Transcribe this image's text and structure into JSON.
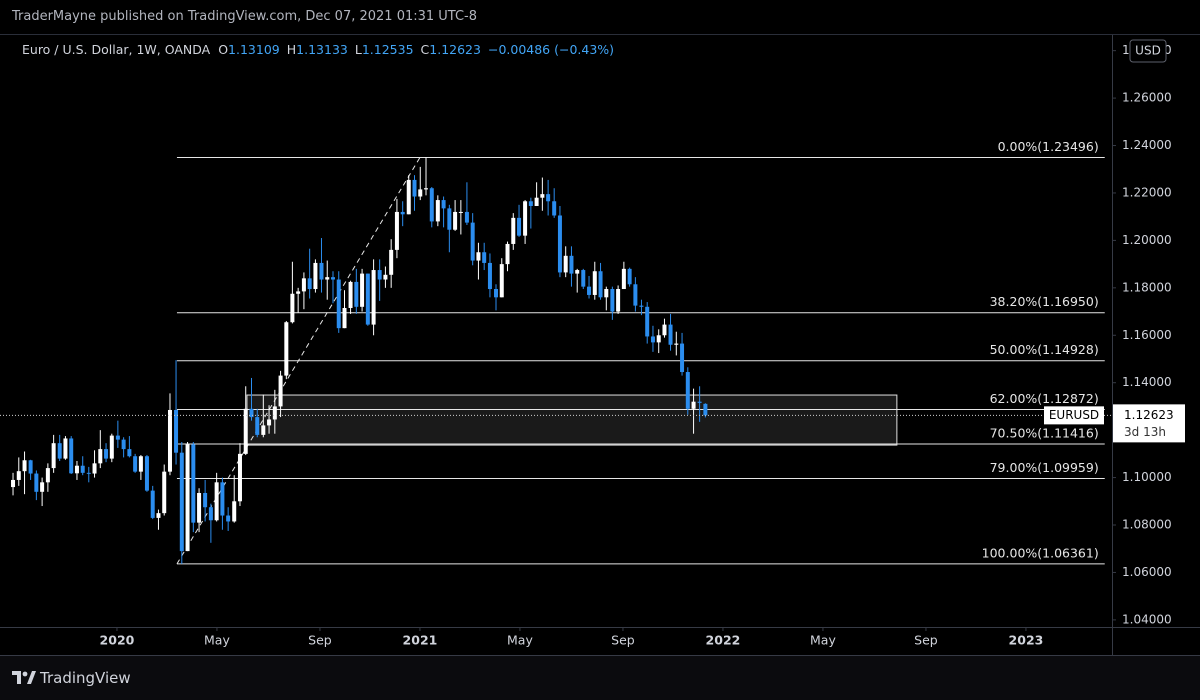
{
  "header": {
    "byline": "TraderMayne published on TradingView.com, Dec 07, 2021 01:31 UTC-8",
    "brand": "TradingView"
  },
  "chart_data": {
    "type": "candlestick",
    "symbol": "Euro / U.S. Dollar, 1W, OANDA",
    "legend_keys": [
      "O",
      "H",
      "L",
      "C"
    ],
    "change": "−0.00486 (−0.43%)",
    "currency": "USD",
    "ticker": "EURUSD",
    "countdown": "3d 13h",
    "x": [
      2019.657,
      2019.676,
      2019.695,
      2019.715,
      2019.734,
      2019.753,
      2019.772,
      2019.791,
      2019.811,
      2019.83,
      2019.849,
      2019.868,
      2019.887,
      2019.907,
      2019.926,
      2019.945,
      2019.964,
      2019.983,
      2020.003,
      2020.022,
      2020.041,
      2020.06,
      2020.079,
      2020.099,
      2020.118,
      2020.137,
      2020.156,
      2020.175,
      2020.195,
      2020.214,
      2020.233,
      2020.252,
      2020.271,
      2020.291,
      2020.31,
      2020.329,
      2020.348,
      2020.367,
      2020.387,
      2020.406,
      2020.425,
      2020.444,
      2020.463,
      2020.483,
      2020.502,
      2020.521,
      2020.54,
      2020.559,
      2020.579,
      2020.598,
      2020.617,
      2020.636,
      2020.655,
      2020.675,
      2020.694,
      2020.713,
      2020.732,
      2020.751,
      2020.771,
      2020.79,
      2020.809,
      2020.828,
      2020.847,
      2020.867,
      2020.886,
      2020.905,
      2020.924,
      2020.943,
      2020.963,
      2020.982,
      2021.001,
      2021.02,
      2021.039,
      2021.059,
      2021.078,
      2021.097,
      2021.116,
      2021.135,
      2021.155,
      2021.174,
      2021.193,
      2021.212,
      2021.231,
      2021.251,
      2021.27,
      2021.289,
      2021.308,
      2021.327,
      2021.347,
      2021.366,
      2021.385,
      2021.404,
      2021.423,
      2021.443,
      2021.462,
      2021.481,
      2021.5,
      2021.519,
      2021.539,
      2021.558,
      2021.577,
      2021.596,
      2021.615,
      2021.635,
      2021.654,
      2021.673,
      2021.692,
      2021.711,
      2021.731,
      2021.75,
      2021.769,
      2021.788,
      2021.807,
      2021.827,
      2021.846,
      2021.865,
      2021.884,
      2021.903,
      2021.923,
      2021.942
    ],
    "open": [
      1.096,
      1.099,
      1.1027,
      1.1073,
      1.1017,
      1.094,
      1.098,
      1.104,
      1.1145,
      1.108,
      1.1165,
      1.1018,
      1.105,
      1.102,
      1.1017,
      1.106,
      1.112,
      1.108,
      1.1177,
      1.116,
      1.112,
      1.109,
      1.1025,
      1.109,
      1.0945,
      1.083,
      1.085,
      1.1025,
      1.1285,
      1.1105,
      1.069,
      1.114,
      1.081,
      1.0935,
      1.0875,
      1.082,
      1.098,
      1.084,
      1.0815,
      1.09,
      1.11,
      1.129,
      1.1255,
      1.118,
      1.122,
      1.1245,
      1.13,
      1.143,
      1.1655,
      1.1775,
      1.1785,
      1.184,
      1.1795,
      1.1905,
      1.1835,
      1.1845,
      1.1835,
      1.163,
      1.1715,
      1.1825,
      1.172,
      1.186,
      1.1645,
      1.1875,
      1.1835,
      1.1855,
      1.196,
      1.212,
      1.211,
      1.2255,
      1.2185,
      1.2215,
      1.222,
      1.208,
      1.217,
      1.2135,
      1.2045,
      1.212,
      1.212,
      1.2075,
      1.1915,
      1.195,
      1.1905,
      1.1795,
      1.176,
      1.19,
      1.1985,
      1.2095,
      1.202,
      1.2165,
      1.2145,
      1.218,
      1.2195,
      1.2165,
      1.2105,
      1.1865,
      1.1935,
      1.186,
      1.1875,
      1.1805,
      1.177,
      1.187,
      1.176,
      1.1795,
      1.17,
      1.1795,
      1.188,
      1.1815,
      1.1725,
      1.172,
      1.1595,
      1.157,
      1.16,
      1.1645,
      1.156,
      1.1565,
      1.1445,
      1.129,
      1.132,
      1.13109
    ],
    "high": [
      1.102,
      1.1085,
      1.111,
      1.1075,
      1.103,
      1.1,
      1.106,
      1.118,
      1.118,
      1.1175,
      1.1175,
      1.107,
      1.109,
      1.1045,
      1.1115,
      1.12,
      1.1145,
      1.1185,
      1.124,
      1.117,
      1.1175,
      1.11,
      1.1095,
      1.1095,
      1.0965,
      1.0865,
      1.1055,
      1.1355,
      1.1495,
      1.115,
      1.115,
      1.115,
      1.0955,
      1.099,
      1.089,
      1.102,
      1.1,
      1.0875,
      1.101,
      1.1145,
      1.1385,
      1.142,
      1.129,
      1.135,
      1.1305,
      1.137,
      1.145,
      1.166,
      1.191,
      1.18,
      1.1865,
      1.1965,
      1.192,
      1.201,
      1.1915,
      1.187,
      1.187,
      1.179,
      1.183,
      1.188,
      1.188,
      1.186,
      1.192,
      1.192,
      1.189,
      1.2005,
      1.2175,
      1.2165,
      1.2275,
      1.2275,
      1.231,
      1.235,
      1.2225,
      1.219,
      1.2185,
      1.215,
      1.217,
      1.217,
      1.2245,
      1.2115,
      1.199,
      1.199,
      1.1945,
      1.1815,
      1.1925,
      1.1995,
      1.2115,
      1.215,
      1.217,
      1.218,
      1.2245,
      1.2265,
      1.2255,
      1.222,
      1.2145,
      1.1975,
      1.1975,
      1.188,
      1.188,
      1.185,
      1.191,
      1.1905,
      1.1805,
      1.1805,
      1.181,
      1.191,
      1.1885,
      1.1845,
      1.175,
      1.174,
      1.164,
      1.1625,
      1.167,
      1.169,
      1.1615,
      1.161,
      1.1465,
      1.1375,
      1.1385,
      1.13133
    ],
    "low": [
      1.0925,
      1.0965,
      1.093,
      1.099,
      1.0905,
      1.088,
      1.094,
      1.102,
      1.107,
      1.1075,
      1.1015,
      1.099,
      1.101,
      1.098,
      1.1,
      1.104,
      1.1065,
      1.1065,
      1.1125,
      1.1085,
      1.1085,
      1.102,
      1.099,
      1.094,
      1.0825,
      1.078,
      1.084,
      1.101,
      1.1055,
      1.0636,
      1.069,
      1.077,
      1.077,
      1.0815,
      1.0725,
      1.0815,
      1.078,
      1.0775,
      1.081,
      1.088,
      1.1095,
      1.124,
      1.117,
      1.117,
      1.1185,
      1.1185,
      1.1255,
      1.1415,
      1.165,
      1.1695,
      1.171,
      1.1755,
      1.178,
      1.178,
      1.175,
      1.1735,
      1.161,
      1.163,
      1.169,
      1.169,
      1.17,
      1.164,
      1.16,
      1.1745,
      1.18,
      1.18,
      1.1925,
      1.206,
      1.211,
      1.2125,
      1.217,
      1.219,
      1.2055,
      1.206,
      1.2055,
      1.195,
      1.204,
      1.2025,
      1.2065,
      1.1895,
      1.1835,
      1.1875,
      1.176,
      1.1705,
      1.176,
      1.187,
      1.196,
      1.2015,
      1.1985,
      1.205,
      1.2145,
      1.2125,
      1.2105,
      1.2095,
      1.1845,
      1.1845,
      1.1805,
      1.178,
      1.1795,
      1.1755,
      1.175,
      1.175,
      1.1705,
      1.1665,
      1.169,
      1.1795,
      1.1805,
      1.17,
      1.1685,
      1.1565,
      1.153,
      1.1525,
      1.159,
      1.1535,
      1.1515,
      1.143,
      1.1265,
      1.1185,
      1.1235,
      1.12535
    ],
    "close": [
      1.099,
      1.1027,
      1.1073,
      1.1017,
      1.094,
      1.098,
      1.104,
      1.1145,
      1.108,
      1.1165,
      1.1018,
      1.105,
      1.102,
      1.1017,
      1.106,
      1.112,
      1.108,
      1.1177,
      1.116,
      1.112,
      1.109,
      1.1025,
      1.109,
      1.0945,
      1.083,
      1.085,
      1.1025,
      1.1285,
      1.1105,
      1.069,
      1.114,
      1.081,
      1.0935,
      1.0875,
      1.082,
      1.098,
      1.084,
      1.0815,
      1.09,
      1.11,
      1.129,
      1.1255,
      1.118,
      1.122,
      1.1245,
      1.13,
      1.143,
      1.1655,
      1.1775,
      1.1785,
      1.184,
      1.1795,
      1.1905,
      1.1835,
      1.1845,
      1.1835,
      1.163,
      1.1715,
      1.1825,
      1.172,
      1.186,
      1.1645,
      1.1875,
      1.1835,
      1.1855,
      1.196,
      1.212,
      1.211,
      1.2255,
      1.2185,
      1.2215,
      1.222,
      1.208,
      1.217,
      1.2135,
      1.2045,
      1.212,
      1.212,
      1.2075,
      1.1915,
      1.195,
      1.1905,
      1.1795,
      1.176,
      1.19,
      1.1985,
      1.2095,
      1.202,
      1.2165,
      1.2145,
      1.218,
      1.2195,
      1.2165,
      1.2105,
      1.1865,
      1.1935,
      1.186,
      1.1875,
      1.1805,
      1.177,
      1.187,
      1.176,
      1.1795,
      1.17,
      1.1795,
      1.188,
      1.1815,
      1.1725,
      1.172,
      1.1595,
      1.157,
      1.16,
      1.1645,
      1.156,
      1.1565,
      1.1445,
      1.129,
      1.132,
      1.1315,
      1.12623
    ],
    "up_color": "#ffffff",
    "down_color": "#2b8def",
    "xlim": [
      2019.614,
      2023.284
    ],
    "xticks": [
      2020,
      {
        "value": 2020.33,
        "label": "May"
      },
      {
        "value": 2020.67,
        "label": "Sep"
      },
      2021,
      {
        "value": 2021.33,
        "label": "May"
      },
      {
        "value": 2021.67,
        "label": "Sep"
      },
      2022,
      {
        "value": 2022.33,
        "label": "May"
      },
      {
        "value": 2022.67,
        "label": "Sep"
      },
      2023
    ],
    "ylim": [
      1.037,
      1.2866
    ],
    "yticks": [
      {
        "value": 1.04,
        "label": "1.04000"
      },
      {
        "value": 1.06,
        "label": "1.06000"
      },
      {
        "value": 1.08,
        "label": "1.08000"
      },
      {
        "value": 1.1,
        "label": "1.10000"
      },
      {
        "value": 1.12,
        "label": "1.12000"
      },
      {
        "value": 1.14,
        "label": "1.14000"
      },
      {
        "value": 1.16,
        "label": "1.16000"
      },
      {
        "value": 1.18,
        "label": "1.18000"
      },
      {
        "value": 1.2,
        "label": "1.20000"
      },
      {
        "value": 1.22,
        "label": "1.22000"
      },
      {
        "value": 1.24,
        "label": "1.24000"
      },
      {
        "value": 1.26,
        "label": "1.26000"
      },
      {
        "value": 1.28,
        "label": "1.28000"
      }
    ],
    "fib": {
      "start": [
        2020.198,
        1.06361
      ],
      "end": [
        2021.0,
        1.23496
      ],
      "x_end": 2023.26,
      "levels": [
        {
          "value": 1.23496,
          "label": "0.00%(1.23496)"
        },
        {
          "value": 1.1695,
          "label": "38.20%(1.16950)"
        },
        {
          "value": 1.14928,
          "label": "50.00%(1.14928)"
        },
        {
          "value": 1.12872,
          "label": "62.00%(1.12872)"
        },
        {
          "value": 1.11416,
          "label": "70.50%(1.11416)"
        },
        {
          "value": 1.09959,
          "label": "79.00%(1.09959)"
        },
        {
          "value": 1.06361,
          "label": "100.00%(1.06361)"
        }
      ]
    },
    "zone": {
      "x": [
        2020.429,
        2022.574
      ],
      "y": [
        1.1137,
        1.1348
      ]
    },
    "grid": false
  }
}
